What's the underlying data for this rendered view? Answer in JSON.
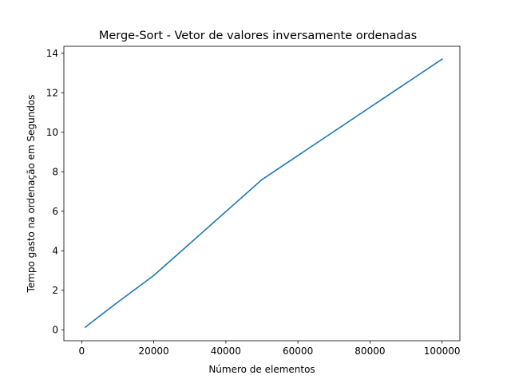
{
  "chart_data": {
    "type": "line",
    "title": "Merge-Sort - Vetor de valores inversamente ordenadas",
    "xlabel": "Número de elementos",
    "ylabel": "Tempo gasto na ordenação em Segundos",
    "xlim": [
      -4950,
      104950
    ],
    "ylim": [
      -0.55,
      14.35
    ],
    "xticks": [
      0,
      20000,
      40000,
      60000,
      80000,
      100000
    ],
    "xtick_labels": [
      "0",
      "20000",
      "40000",
      "60000",
      "80000",
      "100000"
    ],
    "yticks": [
      0,
      2,
      4,
      6,
      8,
      10,
      12,
      14
    ],
    "ytick_labels": [
      "0",
      "2",
      "4",
      "6",
      "8",
      "10",
      "12",
      "14"
    ],
    "grid": false,
    "legend": "none",
    "series": [
      {
        "color": "#1f77b4",
        "x": [
          1000,
          5000,
          10000,
          20000,
          50000,
          100000
        ],
        "y": [
          0.13,
          0.7,
          1.4,
          2.75,
          7.6,
          13.7
        ]
      }
    ]
  }
}
